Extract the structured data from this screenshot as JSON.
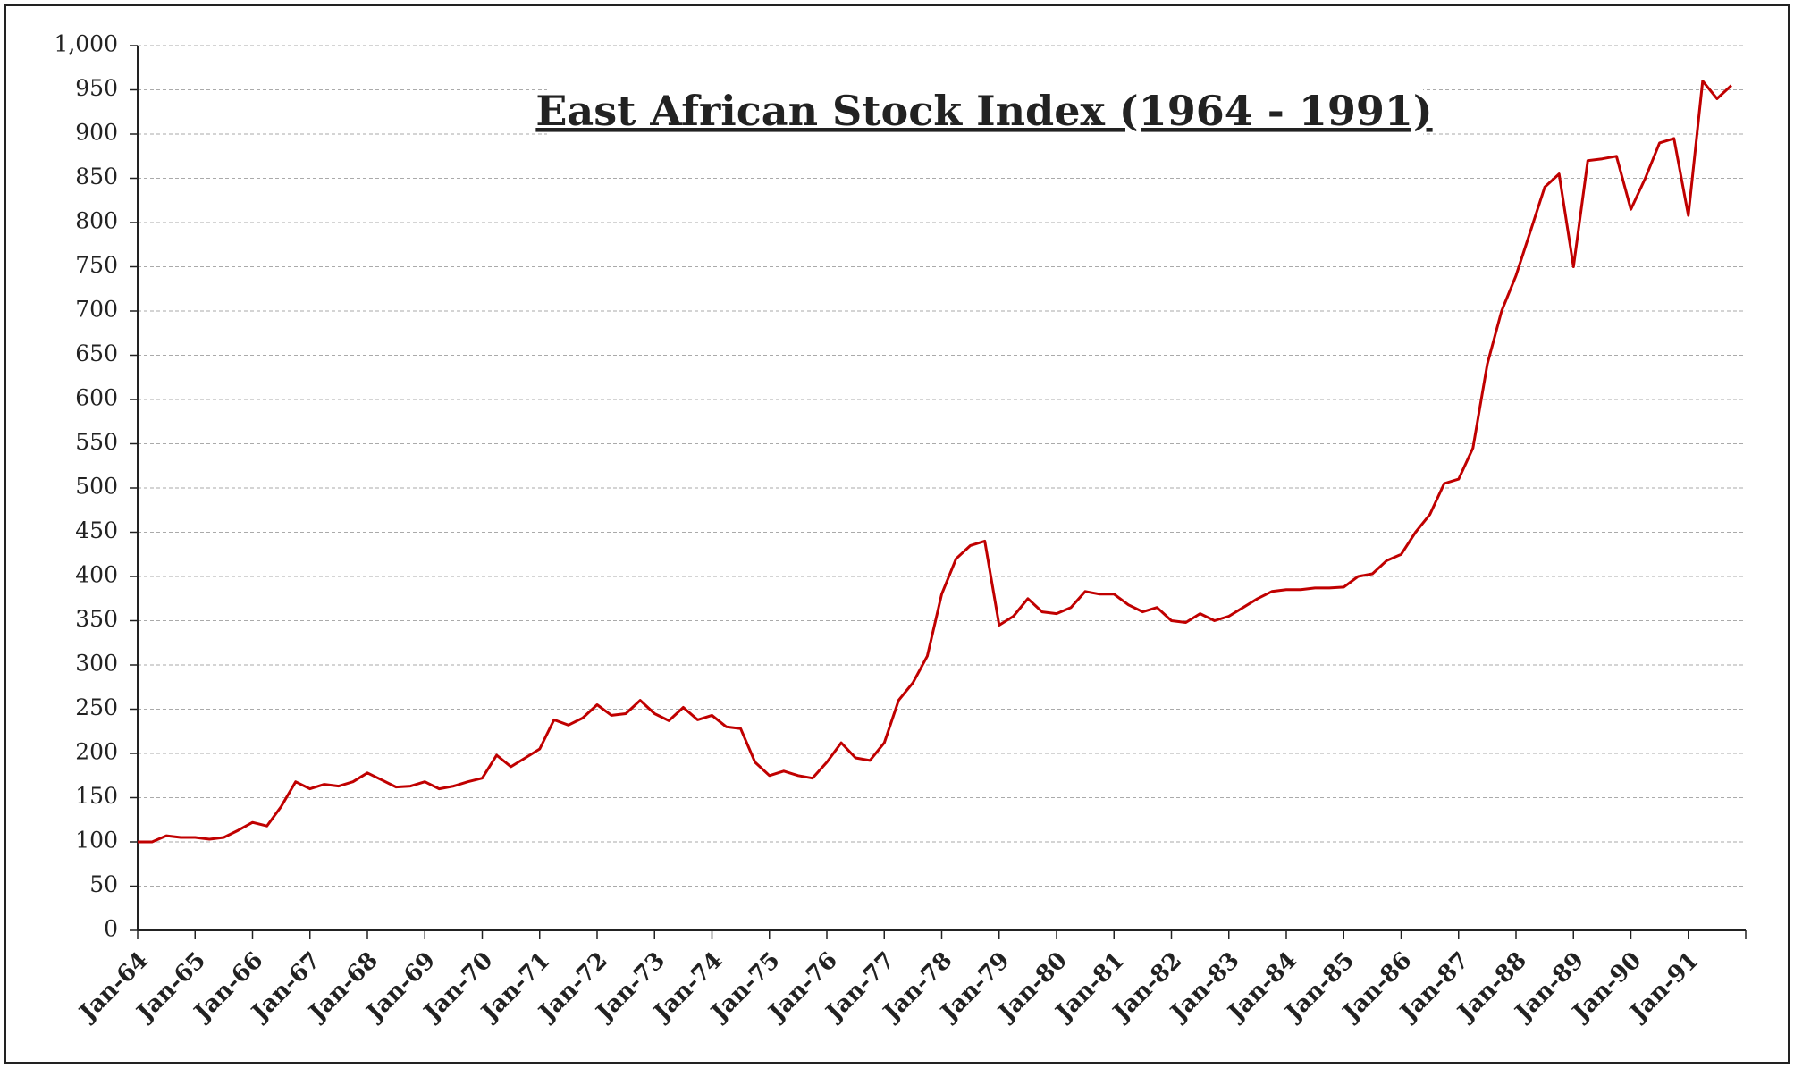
{
  "chart_data": {
    "type": "line",
    "title": "East African Stock Index (1964 - 1991)",
    "categories": [
      "Jan-64",
      null,
      null,
      null,
      "Jan-65",
      null,
      null,
      null,
      "Jan-66",
      null,
      null,
      null,
      "Jan-67",
      null,
      null,
      null,
      "Jan-68",
      null,
      null,
      null,
      "Jan-69",
      null,
      null,
      null,
      "Jan-70",
      null,
      null,
      null,
      "Jan-71",
      null,
      null,
      null,
      "Jan-72",
      null,
      null,
      null,
      "Jan-73",
      null,
      null,
      null,
      "Jan-74",
      null,
      null,
      null,
      "Jan-75",
      null,
      null,
      null,
      "Jan-76",
      null,
      null,
      null,
      "Jan-77",
      null,
      null,
      null,
      "Jan-78",
      null,
      null,
      null,
      "Jan-79",
      null,
      null,
      null,
      "Jan-80",
      null,
      null,
      null,
      "Jan-81",
      null,
      null,
      null,
      "Jan-82",
      null,
      null,
      null,
      "Jan-83",
      null,
      null,
      null,
      "Jan-84",
      null,
      null,
      null,
      "Jan-85",
      null,
      null,
      null,
      "Jan-86",
      null,
      null,
      null,
      "Jan-87",
      null,
      null,
      null,
      "Jan-88",
      null,
      null,
      null,
      "Jan-89",
      null,
      null,
      null,
      "Jan-90",
      null,
      null,
      null,
      "Jan-91",
      null,
      null,
      null
    ],
    "series": [
      {
        "name": "East African Stock Index",
        "color": "#c00000",
        "values": [
          100,
          100,
          107,
          105,
          105,
          103,
          105,
          113,
          122,
          118,
          140,
          168,
          160,
          165,
          163,
          168,
          178,
          170,
          162,
          163,
          168,
          160,
          163,
          168,
          172,
          198,
          185,
          195,
          205,
          238,
          232,
          240,
          255,
          243,
          245,
          260,
          245,
          237,
          252,
          238,
          243,
          230,
          228,
          190,
          175,
          180,
          175,
          172,
          190,
          212,
          195,
          192,
          212,
          260,
          280,
          310,
          380,
          420,
          435,
          440,
          345,
          355,
          375,
          360,
          358,
          365,
          383,
          380,
          380,
          368,
          360,
          365,
          350,
          348,
          358,
          350,
          355,
          365,
          375,
          383,
          385,
          385,
          387,
          387,
          388,
          400,
          403,
          418,
          425,
          450,
          470,
          505,
          510,
          545,
          640,
          700,
          740,
          790,
          840,
          855,
          750,
          870,
          872,
          875,
          815,
          850,
          890,
          895,
          808,
          960,
          940,
          955
        ]
      }
    ],
    "ylim": [
      0,
      1000
    ],
    "yticks": [
      0,
      50,
      100,
      150,
      200,
      250,
      300,
      350,
      400,
      450,
      500,
      550,
      600,
      650,
      700,
      750,
      800,
      850,
      900,
      950,
      {
        "value": 1000,
        "label": "1,000"
      }
    ],
    "grid": true
  }
}
